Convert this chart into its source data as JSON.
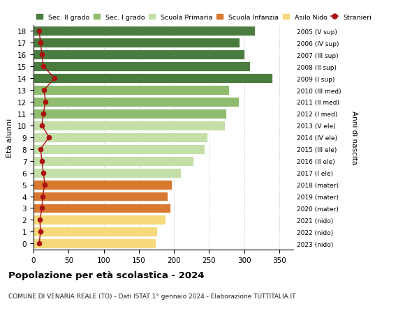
{
  "ages": [
    18,
    17,
    16,
    15,
    14,
    13,
    12,
    11,
    10,
    9,
    8,
    7,
    6,
    5,
    4,
    3,
    2,
    1,
    0
  ],
  "values": [
    315,
    293,
    300,
    308,
    340,
    278,
    292,
    275,
    273,
    248,
    244,
    228,
    210,
    197,
    191,
    195,
    188,
    176,
    174
  ],
  "stranieri": [
    8,
    10,
    12,
    14,
    30,
    15,
    17,
    14,
    12,
    22,
    10,
    12,
    14,
    16,
    13,
    12,
    9,
    10,
    8
  ],
  "right_labels": [
    "2005 (V sup)",
    "2006 (IV sup)",
    "2007 (III sup)",
    "2008 (II sup)",
    "2009 (I sup)",
    "2010 (III med)",
    "2011 (II med)",
    "2012 (I med)",
    "2013 (V ele)",
    "2014 (IV ele)",
    "2015 (III ele)",
    "2016 (II ele)",
    "2017 (I ele)",
    "2018 (mater)",
    "2019 (mater)",
    "2020 (mater)",
    "2021 (nido)",
    "2022 (nido)",
    "2023 (nido)"
  ],
  "bar_colors": [
    "#4a7c3f",
    "#4a7c3f",
    "#4a7c3f",
    "#4a7c3f",
    "#4a7c3f",
    "#8fbc6e",
    "#8fbc6e",
    "#8fbc6e",
    "#c5dfa8",
    "#c5dfa8",
    "#c5dfa8",
    "#c5dfa8",
    "#c5dfa8",
    "#d97830",
    "#d97830",
    "#d97830",
    "#f5d97a",
    "#f5d97a",
    "#f5d97a"
  ],
  "title": "Popolazione per età scolastica - 2024",
  "subtitle": "COMUNE DI VENARIA REALE (TO) - Dati ISTAT 1° gennaio 2024 - Elaborazione TUTTITALIA.IT",
  "ylabel": "Età alunni",
  "right_ylabel": "Anni di nascita",
  "xlim": [
    0,
    370
  ],
  "xticks": [
    0,
    50,
    100,
    150,
    200,
    250,
    300,
    350
  ],
  "legend_labels": [
    "Sec. II grado",
    "Sec. I grado",
    "Scuola Primaria",
    "Scuola Infanzia",
    "Asilo Nido",
    "Stranieri"
  ],
  "legend_colors": [
    "#4a7c3f",
    "#8fbc6e",
    "#c5dfa8",
    "#d97830",
    "#f5d97a",
    "#aa1111"
  ],
  "stranieri_color": "#aa1111",
  "bg_color": "#ffffff",
  "grid_color": "#cccccc"
}
